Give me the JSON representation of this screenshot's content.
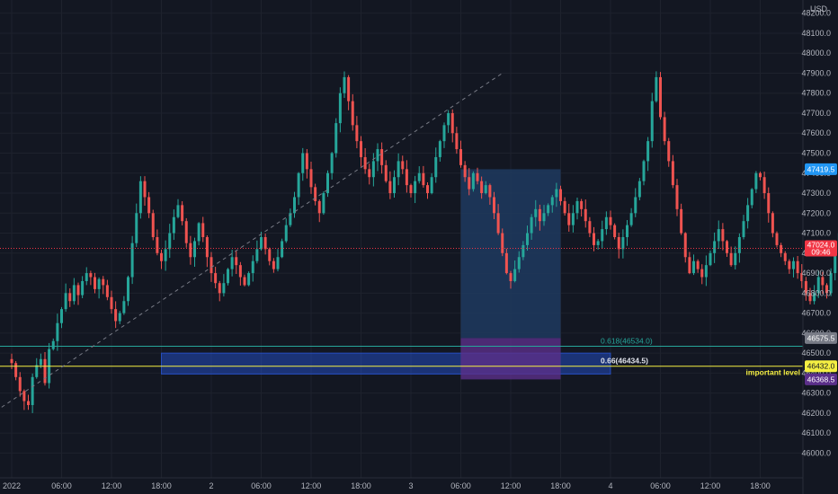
{
  "currency": "USD",
  "colors": {
    "background": "#131722",
    "grid": "#1e222d",
    "up": "#26a69a",
    "down": "#ef5350",
    "axis_text": "#b2b5be",
    "fib_618": "#26a69a",
    "fib_66": "#f5ef42",
    "zone": "#2962ff",
    "profit": "#1e3a5f",
    "loss": "#5b2f8a",
    "price_tag": "#f23645",
    "entry_tag": "#2196f3",
    "trendline": "#787b86"
  },
  "chart_data": {
    "type": "candlestick",
    "symbol_currency": "USD",
    "x_ticks": [
      "2022",
      "06:00",
      "12:00",
      "18:00",
      "2",
      "06:00",
      "12:00",
      "18:00",
      "3",
      "06:00",
      "12:00",
      "18:00",
      "4",
      "06:00",
      "12:00",
      "18:00"
    ],
    "y_ticks": [
      "48200.0",
      "48100.0",
      "48000.0",
      "47900.0",
      "47800.0",
      "47700.0",
      "47600.0",
      "47500.0",
      "47400.0",
      "47300.0",
      "47200.0",
      "47100.0",
      "47000.0",
      "46900.0",
      "46800.0",
      "46700.0",
      "46600.0",
      "46500.0",
      "46400.0",
      "46300.0",
      "46200.0",
      "46100.0",
      "46000.0"
    ],
    "ylim": [
      45930,
      48230
    ],
    "time_unit": "hours since 2022-01-01 00:00",
    "candle_interval_hours": 0.5,
    "current_price": "47024.0",
    "countdown": "09:46",
    "levels": [
      {
        "label": "0.618(46534.0)",
        "price": 46534.0,
        "tag": "46575.5"
      },
      {
        "label": "0.66(46434.5)",
        "price": 46434.5,
        "tag": "46432.0"
      }
    ],
    "important_level_label": "important level",
    "zone": {
      "price_top": 46500,
      "price_bottom": 46395,
      "start_hour": 18,
      "end_hour": 72
    },
    "position": {
      "entry": 47419.5,
      "entry_tag": "47419.5",
      "stop_top": 46575,
      "stop_bottom": 46368.5,
      "stop_tag": "46368.5",
      "start_hour": 54,
      "end_hour": 66
    },
    "trendline": {
      "start": [
        -12,
        45930
      ],
      "end": [
        59,
        47900
      ]
    },
    "closes": [
      46450,
      46380,
      46310,
      46260,
      46240,
      46380,
      46440,
      46470,
      46350,
      46520,
      46560,
      46650,
      46720,
      46800,
      46760,
      46840,
      46790,
      46860,
      46900,
      46880,
      46820,
      46870,
      46840,
      46780,
      46720,
      46660,
      46700,
      46760,
      46880,
      47050,
      47200,
      47360,
      47280,
      47200,
      47080,
      47000,
      46960,
      47020,
      47100,
      47180,
      47240,
      47160,
      47050,
      46980,
      47060,
      47150,
      47080,
      46980,
      46900,
      46850,
      46800,
      46850,
      46920,
      46980,
      46940,
      46880,
      46840,
      46900,
      46960,
      47020,
      47080,
      47020,
      46960,
      46920,
      46980,
      47060,
      47140,
      47200,
      47280,
      47400,
      47500,
      47420,
      47330,
      47260,
      47200,
      47300,
      47400,
      47500,
      47650,
      47800,
      47880,
      47760,
      47640,
      47560,
      47480,
      47420,
      47380,
      47460,
      47520,
      47440,
      47360,
      47300,
      47380,
      47460,
      47420,
      47340,
      47300,
      47360,
      47400,
      47340,
      47300,
      47380,
      47480,
      47560,
      47640,
      47700,
      47600,
      47520,
      47440,
      47380,
      47320,
      47400,
      47360,
      47300,
      47340,
      47280,
      47200,
      47100,
      47000,
      46900,
      46860,
      46920,
      46980,
      47040,
      47100,
      47180,
      47220,
      47160,
      47200,
      47240,
      47280,
      47320,
      47260,
      47200,
      47140,
      47200,
      47260,
      47220,
      47160,
      47100,
      47040,
      47060,
      47120,
      47180,
      47140,
      47080,
      47020,
      47080,
      47140,
      47200,
      47280,
      47360,
      47460,
      47560,
      47760,
      47880,
      47680,
      47560,
      47460,
      47340,
      47220,
      47100,
      46980,
      46900,
      46960,
      46920,
      46880,
      46940,
      47000,
      47060,
      47120,
      47060,
      47000,
      46940,
      47000,
      47080,
      47160,
      47240,
      47320,
      47400,
      47380,
      47300,
      47200,
      47100,
      47040,
      47000,
      46960,
      46920,
      46960,
      46900,
      46860,
      46800,
      46760,
      46800,
      46880,
      46840,
      46800,
      46900,
      47000,
      47100,
      47180,
      47120,
      47024
    ]
  }
}
